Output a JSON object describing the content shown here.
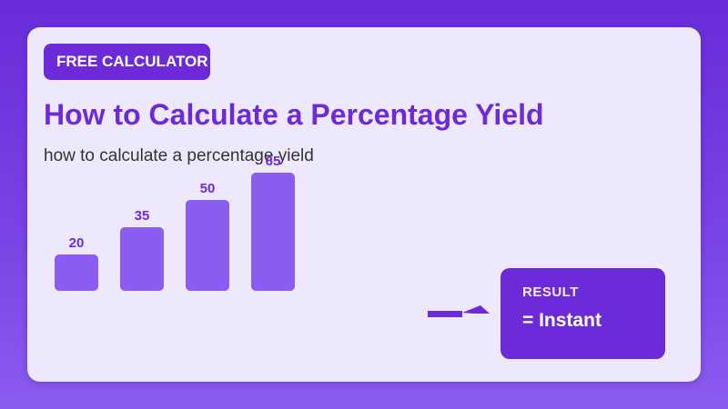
{
  "badge": {
    "text": "FREE CALCULATOR"
  },
  "title": "How to Calculate a Percentage Yield",
  "subtitle": "how to calculate a percentage yield",
  "result": {
    "label": "RESULT",
    "value": "= Instant"
  },
  "colors": {
    "accent": "#6d2ad8",
    "bar": "#8b5cf0",
    "card": "#ede8fb",
    "background": "#6a2bd9"
  },
  "icons": {
    "connector": "arrow-right-icon"
  },
  "chart_data": {
    "type": "bar",
    "categories": [
      "",
      "",
      "",
      ""
    ],
    "values": [
      20,
      35,
      50,
      65
    ],
    "title": "",
    "xlabel": "",
    "ylabel": "",
    "grid": false
  }
}
